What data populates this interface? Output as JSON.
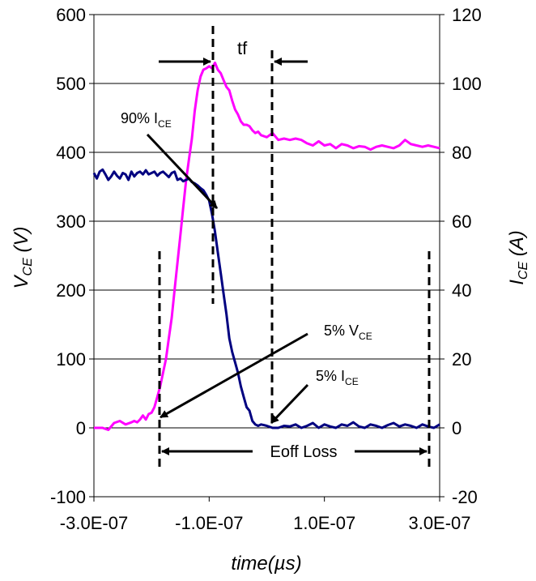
{
  "chart_data": {
    "type": "line",
    "xlabel": "time(µs)",
    "ylabel_left": {
      "main": "V",
      "sub": "CE",
      "unit": " (V)"
    },
    "ylabel_right": {
      "main": "I",
      "sub": "CE",
      "unit": " (A)"
    },
    "xlim": [
      -3e-07,
      3e-07
    ],
    "ylim_left": [
      -100,
      600
    ],
    "ylim_right": [
      -20,
      120
    ],
    "x_ticks": [
      -3e-07,
      -1e-07,
      1e-07,
      3e-07
    ],
    "x_tick_labels": [
      "-3.0E-07",
      "-1.0E-07",
      "1.0E-07",
      "3.0E-07"
    ],
    "y_ticks_left": [
      -100,
      0,
      100,
      200,
      300,
      400,
      500,
      600
    ],
    "y_tick_labels_left": [
      "-100",
      "0",
      "100",
      "200",
      "300",
      "400",
      "500",
      "600"
    ],
    "y_ticks_right": [
      -20,
      0,
      20,
      40,
      60,
      80,
      100,
      120
    ],
    "y_tick_labels_right": [
      "-20",
      "0",
      "20",
      "40",
      "60",
      "80",
      "100",
      "120"
    ],
    "grid": {
      "horizontal": true,
      "vertical": false
    },
    "series": [
      {
        "color": "#ff00ff",
        "axis": "left",
        "x": [
          -3e-07,
          -2.85e-07,
          -2.75e-07,
          -2.65e-07,
          -2.55e-07,
          -2.45e-07,
          -2.35e-07,
          -2.3e-07,
          -2.25e-07,
          -2.2e-07,
          -2.15e-07,
          -2.1e-07,
          -2.05e-07,
          -2e-07,
          -1.95e-07,
          -1.9e-07,
          -1.85e-07,
          -1.8e-07,
          -1.75e-07,
          -1.7e-07,
          -1.65e-07,
          -1.6e-07,
          -1.55e-07,
          -1.5e-07,
          -1.45e-07,
          -1.4e-07,
          -1.35e-07,
          -1.3e-07,
          -1.25e-07,
          -1.2e-07,
          -1.15e-07,
          -1.1e-07,
          -1.05e-07,
          -1e-07,
          -9.5e-08,
          -9e-08,
          -8.5e-08,
          -8e-08,
          -7.5e-08,
          -7e-08,
          -6.5e-08,
          -6e-08,
          -5.5e-08,
          -5e-08,
          -4.5e-08,
          -4e-08,
          -3.5e-08,
          -3e-08,
          -2.5e-08,
          -2e-08,
          -1.5e-08,
          -1e-08,
          0,
          1e-08,
          2e-08,
          3e-08,
          4e-08,
          5e-08,
          6e-08,
          7e-08,
          8e-08,
          9e-08,
          1e-07,
          1.1e-07,
          1.2e-07,
          1.3e-07,
          1.4e-07,
          1.5e-07,
          1.6e-07,
          1.7e-07,
          1.8e-07,
          1.9e-07,
          2e-07,
          2.1e-07,
          2.2e-07,
          2.3e-07,
          2.4e-07,
          2.5e-07,
          2.6e-07,
          2.7e-07,
          2.8e-07,
          2.9e-07,
          3e-07
        ],
        "values": [
          0,
          0,
          -3,
          7,
          10,
          5,
          8,
          10,
          8,
          12,
          18,
          12,
          20,
          22,
          30,
          45,
          60,
          80,
          100,
          130,
          160,
          200,
          240,
          280,
          320,
          360,
          390,
          420,
          460,
          490,
          510,
          520,
          522,
          525,
          522,
          530,
          520,
          515,
          505,
          495,
          490,
          475,
          462,
          455,
          445,
          440,
          440,
          438,
          432,
          428,
          430,
          425,
          422,
          428,
          418,
          420,
          418,
          420,
          418,
          413,
          410,
          416,
          410,
          412,
          406,
          412,
          410,
          406,
          409,
          408,
          404,
          408,
          410,
          408,
          406,
          410,
          418,
          412,
          410,
          408,
          410,
          408,
          406
        ]
      },
      {
        "color": "#000080",
        "axis": "left",
        "x": [
          -3e-07,
          -2.95e-07,
          -2.9e-07,
          -2.85e-07,
          -2.8e-07,
          -2.75e-07,
          -2.7e-07,
          -2.65e-07,
          -2.6e-07,
          -2.55e-07,
          -2.5e-07,
          -2.45e-07,
          -2.4e-07,
          -2.35e-07,
          -2.3e-07,
          -2.25e-07,
          -2.2e-07,
          -2.15e-07,
          -2.1e-07,
          -2.05e-07,
          -2e-07,
          -1.95e-07,
          -1.9e-07,
          -1.85e-07,
          -1.8e-07,
          -1.75e-07,
          -1.7e-07,
          -1.65e-07,
          -1.6e-07,
          -1.55e-07,
          -1.5e-07,
          -1.45e-07,
          -1.4e-07,
          -1.35e-07,
          -1.3e-07,
          -1.25e-07,
          -1.2e-07,
          -1.15e-07,
          -1.1e-07,
          -1.05e-07,
          -1e-07,
          -9.5e-08,
          -9e-08,
          -8.5e-08,
          -8e-08,
          -7.5e-08,
          -7e-08,
          -6.5e-08,
          -6e-08,
          -5.5e-08,
          -5e-08,
          -4.5e-08,
          -4e-08,
          -3.5e-08,
          -3e-08,
          -2.5e-08,
          -2e-08,
          -1.5e-08,
          -1e-08,
          -5e-09,
          0,
          1e-08,
          2e-08,
          3e-08,
          4e-08,
          5e-08,
          6e-08,
          7e-08,
          8e-08,
          9e-08,
          1e-07,
          1.1e-07,
          1.2e-07,
          1.3e-07,
          1.4e-07,
          1.5e-07,
          1.6e-07,
          1.7e-07,
          1.8e-07,
          1.9e-07,
          2e-07,
          2.1e-07,
          2.2e-07,
          2.3e-07,
          2.4e-07,
          2.5e-07,
          2.6e-07,
          2.7e-07,
          2.8e-07,
          2.9e-07,
          3e-07
        ],
        "values": [
          370,
          362,
          372,
          375,
          368,
          360,
          365,
          372,
          366,
          362,
          370,
          368,
          360,
          372,
          365,
          370,
          372,
          368,
          374,
          368,
          370,
          372,
          366,
          370,
          372,
          368,
          364,
          370,
          372,
          360,
          362,
          358,
          360,
          362,
          357,
          355,
          352,
          348,
          345,
          338,
          330,
          310,
          285,
          255,
          225,
          195,
          165,
          130,
          110,
          95,
          80,
          60,
          45,
          30,
          25,
          10,
          5,
          3,
          5,
          4,
          3,
          0,
          0,
          3,
          2,
          5,
          0,
          3,
          7,
          0,
          5,
          2,
          0,
          5,
          3,
          8,
          2,
          0,
          5,
          3,
          0,
          4,
          7,
          2,
          5,
          3,
          0,
          5,
          2,
          0,
          5
        ]
      }
    ],
    "annotations": {
      "tf": "tf",
      "i90": {
        "main": "90% I",
        "sub": "CE"
      },
      "v5": {
        "main": "5% V",
        "sub": "CE"
      },
      "i5": {
        "main": "5% I",
        "sub": "CE"
      },
      "eoff": "Eoff Loss"
    }
  }
}
